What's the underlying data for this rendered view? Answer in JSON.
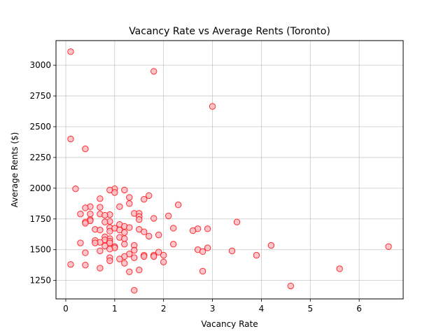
{
  "chart_data": {
    "type": "scatter",
    "title": "Vacancy Rate vs Average Rents (Toronto)",
    "xlabel": "Vacancy Rate",
    "ylabel": "Average Rents ($)",
    "xlim": [
      -0.2,
      6.9
    ],
    "ylim": [
      1100,
      3200
    ],
    "xticks": [
      0,
      1,
      2,
      3,
      4,
      5,
      6
    ],
    "yticks": [
      1250,
      1500,
      1750,
      2000,
      2250,
      2500,
      2750,
      3000
    ],
    "grid": true,
    "marker": {
      "face": "#ffb6c1",
      "edge": "#ff0000",
      "alpha": 0.8
    },
    "points": [
      [
        0.1,
        3110
      ],
      [
        1.8,
        2950
      ],
      [
        3.0,
        2665
      ],
      [
        0.1,
        2400
      ],
      [
        0.4,
        2320
      ],
      [
        0.2,
        1995
      ],
      [
        1.0,
        1995
      ],
      [
        1.2,
        1985
      ],
      [
        0.9,
        1985
      ],
      [
        1.0,
        1965
      ],
      [
        1.7,
        1940
      ],
      [
        1.3,
        1925
      ],
      [
        0.7,
        1915
      ],
      [
        1.6,
        1910
      ],
      [
        1.3,
        1875
      ],
      [
        2.3,
        1865
      ],
      [
        0.5,
        1850
      ],
      [
        1.1,
        1850
      ],
      [
        0.7,
        1845
      ],
      [
        0.4,
        1840
      ],
      [
        1.4,
        1795
      ],
      [
        1.5,
        1795
      ],
      [
        0.3,
        1790
      ],
      [
        0.5,
        1790
      ],
      [
        0.7,
        1790
      ],
      [
        0.9,
        1785
      ],
      [
        0.8,
        1780
      ],
      [
        2.1,
        1775
      ],
      [
        1.5,
        1770
      ],
      [
        1.8,
        1755
      ],
      [
        1.5,
        1745
      ],
      [
        0.5,
        1745
      ],
      [
        0.5,
        1735
      ],
      [
        0.9,
        1730
      ],
      [
        0.8,
        1725
      ],
      [
        3.5,
        1725
      ],
      [
        0.4,
        1725
      ],
      [
        0.4,
        1715
      ],
      [
        1.1,
        1705
      ],
      [
        1.2,
        1690
      ],
      [
        0.9,
        1680
      ],
      [
        1.3,
        1680
      ],
      [
        1.0,
        1675
      ],
      [
        2.2,
        1675
      ],
      [
        2.7,
        1670
      ],
      [
        2.9,
        1670
      ],
      [
        0.6,
        1665
      ],
      [
        0.7,
        1660
      ],
      [
        1.5,
        1665
      ],
      [
        1.1,
        1660
      ],
      [
        0.9,
        1650
      ],
      [
        2.6,
        1655
      ],
      [
        1.6,
        1645
      ],
      [
        1.2,
        1640
      ],
      [
        1.9,
        1620
      ],
      [
        1.7,
        1610
      ],
      [
        1.1,
        1600
      ],
      [
        0.8,
        1605
      ],
      [
        0.9,
        1590
      ],
      [
        1.2,
        1590
      ],
      [
        0.8,
        1580
      ],
      [
        0.6,
        1575
      ],
      [
        0.9,
        1570
      ],
      [
        0.7,
        1560
      ],
      [
        0.6,
        1555
      ],
      [
        0.3,
        1555
      ],
      [
        0.9,
        1555
      ],
      [
        1.2,
        1545
      ],
      [
        2.2,
        1545
      ],
      [
        1.4,
        1535
      ],
      [
        4.2,
        1535
      ],
      [
        0.8,
        1530
      ],
      [
        1.0,
        1525
      ],
      [
        6.6,
        1525
      ],
      [
        1.0,
        1515
      ],
      [
        2.9,
        1515
      ],
      [
        0.9,
        1505
      ],
      [
        2.7,
        1500
      ],
      [
        1.4,
        1495
      ],
      [
        0.7,
        1490
      ],
      [
        3.4,
        1490
      ],
      [
        2.8,
        1485
      ],
      [
        1.9,
        1480
      ],
      [
        0.4,
        1475
      ],
      [
        1.3,
        1465
      ],
      [
        1.6,
        1455
      ],
      [
        1.8,
        1455
      ],
      [
        2.0,
        1455
      ],
      [
        3.9,
        1455
      ],
      [
        1.2,
        1445
      ],
      [
        1.6,
        1445
      ],
      [
        1.8,
        1445
      ],
      [
        1.4,
        1435
      ],
      [
        0.9,
        1435
      ],
      [
        1.1,
        1425
      ],
      [
        0.9,
        1410
      ],
      [
        2.0,
        1400
      ],
      [
        1.2,
        1390
      ],
      [
        0.1,
        1380
      ],
      [
        0.4,
        1375
      ],
      [
        0.7,
        1350
      ],
      [
        5.6,
        1345
      ],
      [
        1.5,
        1335
      ],
      [
        1.3,
        1320
      ],
      [
        2.8,
        1325
      ],
      [
        4.6,
        1205
      ],
      [
        1.4,
        1170
      ]
    ]
  }
}
